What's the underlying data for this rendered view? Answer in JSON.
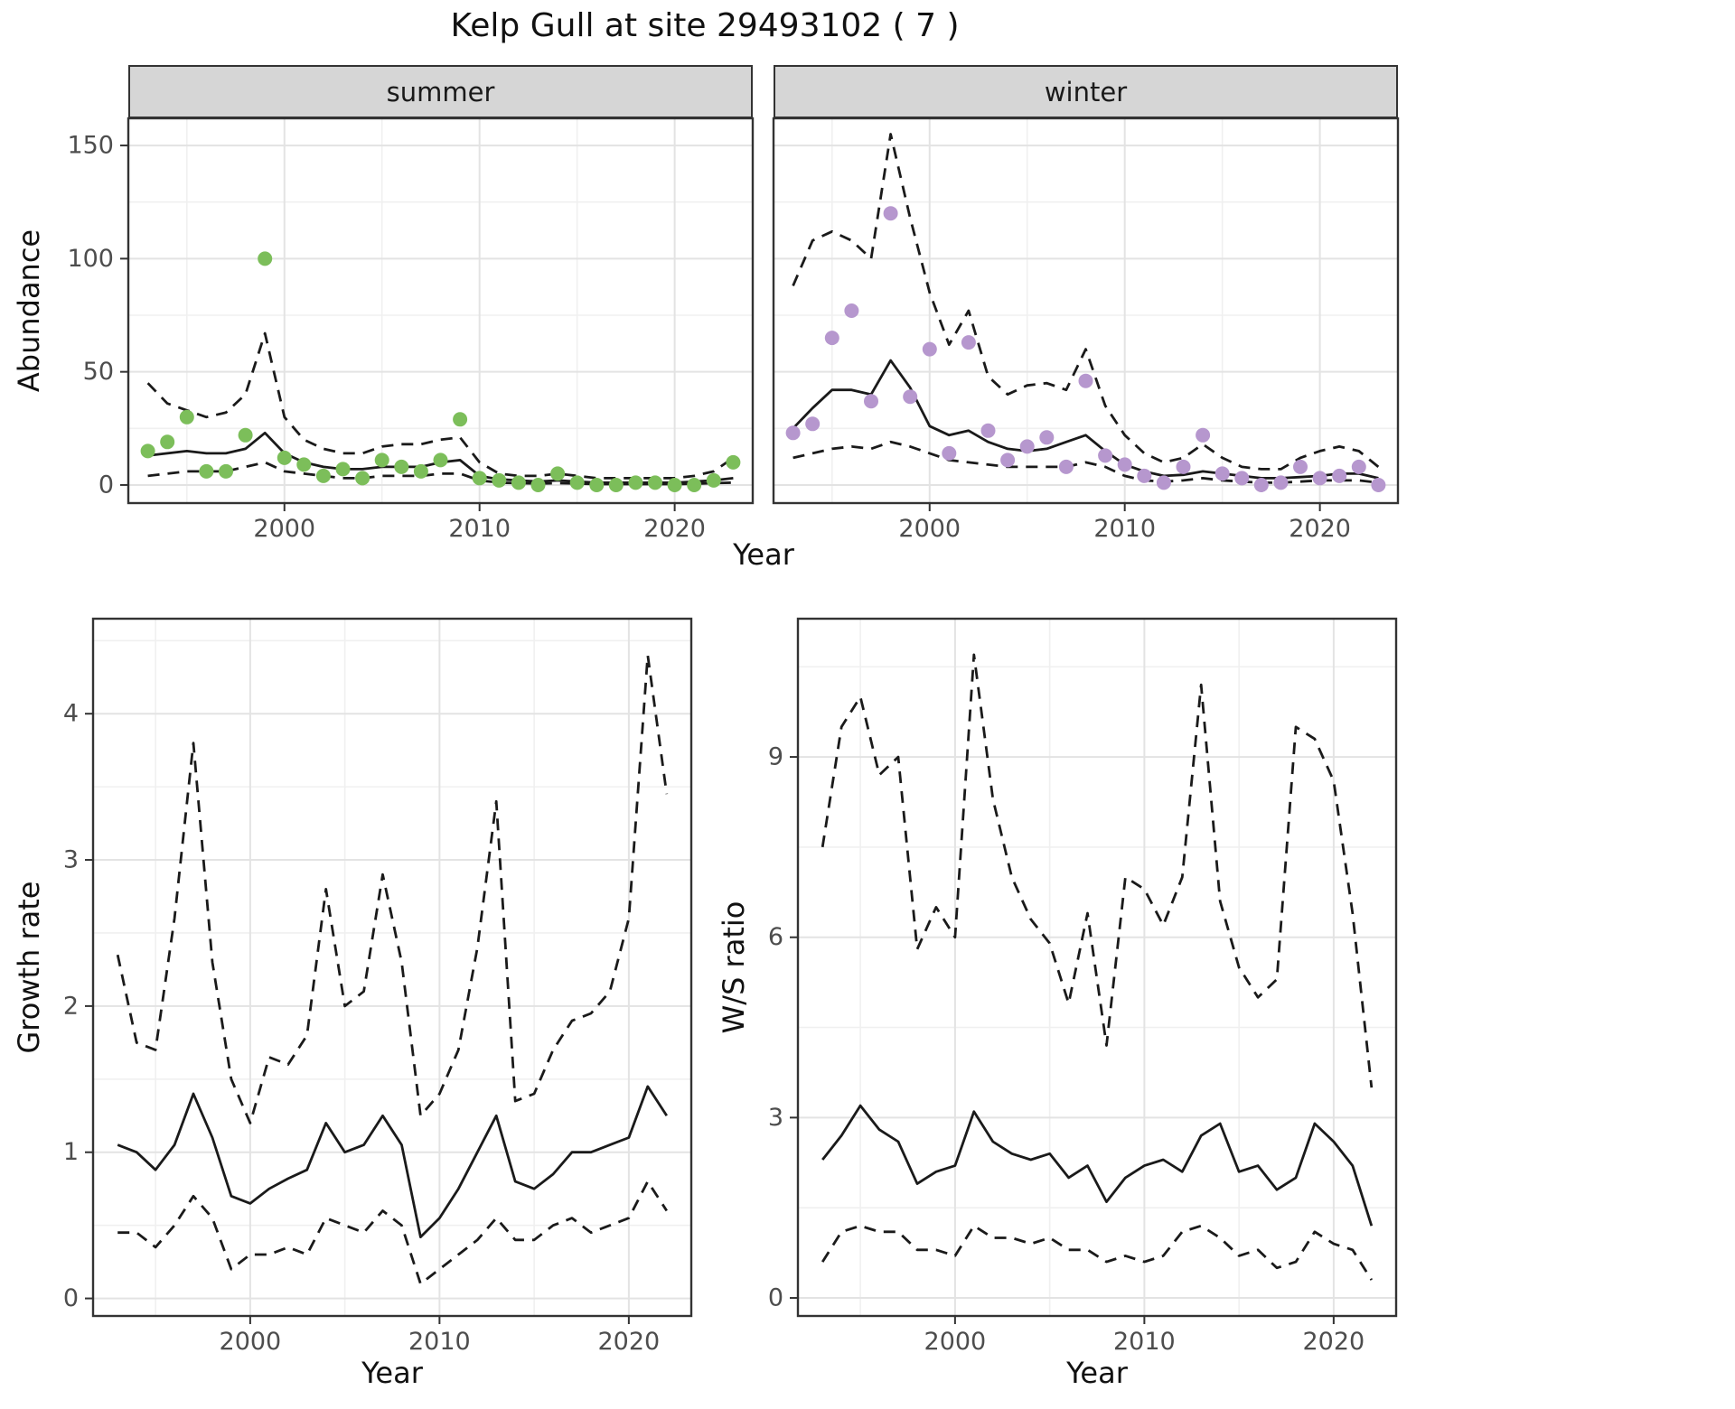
{
  "title": "Kelp Gull at site 29493102 ( 7 )",
  "axis_labels": {
    "abundance": "Abundance",
    "year": "Year",
    "growth_rate": "Growth rate",
    "ws_ratio": "W/S ratio"
  },
  "colors": {
    "summer_point": "#7CBE5A",
    "winter_point": "#B697CE",
    "line": "#1a1a1a",
    "panel_border": "#333333",
    "strip_bg": "#d6d6d6",
    "grid_major": "#e3e3e3",
    "grid_minor": "#f0f0f0"
  },
  "chart_data": [
    {
      "id": "abundance-summer",
      "type": "scatter",
      "facet_label": "summer",
      "ylabel": "Abundance",
      "xlabel": "Year",
      "x": [
        1993,
        1994,
        1995,
        1996,
        1997,
        1998,
        1999,
        2000,
        2001,
        2002,
        2003,
        2004,
        2005,
        2006,
        2007,
        2008,
        2009,
        2010,
        2011,
        2012,
        2013,
        2014,
        2015,
        2016,
        2017,
        2018,
        2019,
        2020,
        2021,
        2022,
        2023
      ],
      "observed": [
        15,
        19,
        30,
        6,
        6,
        22,
        100,
        12,
        9,
        4,
        7,
        3,
        11,
        8,
        6,
        11,
        29,
        3,
        2,
        1,
        0,
        5,
        1,
        0,
        0,
        1,
        1,
        0,
        0,
        2,
        10
      ],
      "fit": [
        13,
        14,
        15,
        14,
        14,
        16,
        23,
        14,
        10,
        8,
        7,
        7,
        8,
        8,
        8,
        10,
        11,
        4,
        2.5,
        2,
        1.5,
        2,
        1.5,
        1,
        1,
        1,
        1,
        1,
        1.5,
        2,
        3
      ],
      "upper": [
        45,
        36,
        33,
        30,
        32,
        40,
        67,
        30,
        20,
        16,
        14,
        14,
        17,
        18,
        18,
        20,
        21,
        10,
        5,
        4,
        4,
        5,
        4,
        3,
        3,
        3,
        3,
        3,
        4,
        6,
        12
      ],
      "lower": [
        4,
        5,
        6,
        6,
        6,
        8,
        10,
        6,
        5,
        4,
        3,
        3,
        4,
        4,
        4,
        5,
        5,
        2,
        1,
        0.8,
        0.6,
        0.8,
        0.6,
        0.4,
        0.4,
        0.4,
        0.4,
        0.4,
        0.5,
        0.8,
        1
      ],
      "point_color": "#7CBE5A",
      "xlim": [
        1992,
        2024
      ],
      "ylim": [
        -8,
        162
      ],
      "xticks": [
        2000,
        2010,
        2020
      ],
      "yticks": [
        0,
        50,
        100,
        150
      ],
      "x_minor": [
        1995,
        2005,
        2015
      ],
      "y_minor": [
        25,
        75,
        125
      ]
    },
    {
      "id": "abundance-winter",
      "type": "scatter",
      "facet_label": "winter",
      "ylabel": "Abundance",
      "xlabel": "Year",
      "x": [
        1993,
        1994,
        1995,
        1996,
        1997,
        1998,
        1999,
        2000,
        2001,
        2002,
        2003,
        2004,
        2005,
        2006,
        2007,
        2008,
        2009,
        2010,
        2011,
        2012,
        2013,
        2014,
        2015,
        2016,
        2017,
        2018,
        2019,
        2020,
        2021,
        2022,
        2023
      ],
      "observed": [
        23,
        27,
        65,
        77,
        37,
        120,
        39,
        60,
        14,
        63,
        24,
        11,
        17,
        21,
        8,
        46,
        13,
        9,
        4,
        1,
        8,
        22,
        5,
        3,
        0,
        1,
        8,
        3,
        4,
        8,
        0
      ],
      "fit": [
        25,
        34,
        42,
        42,
        40,
        55,
        43,
        26,
        22,
        24,
        19,
        16,
        15,
        16,
        19,
        22,
        15,
        9,
        6,
        4,
        4.5,
        6,
        5,
        4,
        3,
        3,
        3.5,
        4,
        5,
        5,
        3
      ],
      "upper": [
        88,
        108,
        112,
        108,
        100,
        155,
        118,
        85,
        62,
        77,
        48,
        40,
        44,
        45,
        42,
        60,
        35,
        22,
        14,
        10,
        12,
        18,
        12,
        8,
        7,
        7,
        12,
        15,
        17,
        15,
        8
      ],
      "lower": [
        12,
        14,
        16,
        17,
        16,
        19,
        17,
        14,
        11,
        10,
        9,
        8,
        8,
        8,
        8,
        10,
        8,
        4,
        2,
        1.5,
        2,
        3,
        2,
        1.5,
        1,
        1,
        1.5,
        2,
        2,
        2,
        1
      ],
      "point_color": "#B697CE",
      "xlim": [
        1992,
        2024
      ],
      "ylim": [
        -8,
        162
      ],
      "xticks": [
        2000,
        2010,
        2020
      ],
      "yticks": [
        0,
        50,
        100,
        150
      ],
      "x_minor": [
        1995,
        2005,
        2015
      ],
      "y_minor": [
        25,
        75,
        125
      ]
    },
    {
      "id": "growth-rate",
      "type": "line",
      "ylabel": "Growth rate",
      "xlabel": "Year",
      "x": [
        1993,
        1994,
        1995,
        1996,
        1997,
        1998,
        1999,
        2000,
        2001,
        2002,
        2003,
        2004,
        2005,
        2006,
        2007,
        2008,
        2009,
        2010,
        2011,
        2012,
        2013,
        2014,
        2015,
        2016,
        2017,
        2018,
        2019,
        2020,
        2021,
        2022
      ],
      "fit": [
        1.05,
        1.0,
        0.88,
        1.05,
        1.4,
        1.1,
        0.7,
        0.65,
        0.75,
        0.82,
        0.88,
        1.2,
        1.0,
        1.05,
        1.25,
        1.05,
        0.42,
        0.55,
        0.75,
        1.0,
        1.25,
        0.8,
        0.75,
        0.85,
        1.0,
        1.0,
        1.05,
        1.1,
        1.45,
        1.25
      ],
      "upper": [
        2.35,
        1.75,
        1.7,
        2.6,
        3.8,
        2.3,
        1.5,
        1.2,
        1.65,
        1.6,
        1.8,
        2.8,
        2.0,
        2.1,
        2.9,
        2.3,
        1.25,
        1.4,
        1.7,
        2.4,
        3.4,
        1.35,
        1.4,
        1.7,
        1.9,
        1.95,
        2.1,
        2.6,
        4.4,
        3.45
      ],
      "lower": [
        0.45,
        0.45,
        0.35,
        0.5,
        0.7,
        0.55,
        0.2,
        0.3,
        0.3,
        0.35,
        0.3,
        0.55,
        0.5,
        0.45,
        0.6,
        0.5,
        0.1,
        0.2,
        0.3,
        0.4,
        0.55,
        0.4,
        0.4,
        0.5,
        0.55,
        0.45,
        0.5,
        0.55,
        0.8,
        0.6
      ],
      "xlim": [
        1991.7,
        2023.3
      ],
      "ylim": [
        -0.12,
        4.65
      ],
      "xticks": [
        2000,
        2010,
        2020
      ],
      "yticks": [
        0,
        1,
        2,
        3,
        4
      ],
      "x_minor": [
        1995,
        2005,
        2015
      ],
      "y_minor": [
        0.5,
        1.5,
        2.5,
        3.5,
        4.5
      ]
    },
    {
      "id": "ws-ratio",
      "type": "line",
      "ylabel": "W/S ratio",
      "xlabel": "Year",
      "x": [
        1993,
        1994,
        1995,
        1996,
        1997,
        1998,
        1999,
        2000,
        2001,
        2002,
        2003,
        2004,
        2005,
        2006,
        2007,
        2008,
        2009,
        2010,
        2011,
        2012,
        2013,
        2014,
        2015,
        2016,
        2017,
        2018,
        2019,
        2020,
        2021,
        2022
      ],
      "fit": [
        2.3,
        2.7,
        3.2,
        2.8,
        2.6,
        1.9,
        2.1,
        2.2,
        3.1,
        2.6,
        2.4,
        2.3,
        2.4,
        2.0,
        2.2,
        1.6,
        2.0,
        2.2,
        2.3,
        2.1,
        2.7,
        2.9,
        2.1,
        2.2,
        1.8,
        2.0,
        2.9,
        2.6,
        2.2,
        1.2
      ],
      "upper": [
        7.5,
        9.5,
        10.0,
        8.7,
        9.0,
        5.8,
        6.5,
        6.0,
        10.7,
        8.3,
        7.0,
        6.3,
        5.9,
        4.9,
        6.4,
        4.2,
        7.0,
        6.8,
        6.2,
        7.0,
        10.2,
        6.6,
        5.5,
        5.0,
        5.3,
        9.5,
        9.3,
        8.6,
        6.4,
        3.5
      ],
      "lower": [
        0.6,
        1.1,
        1.2,
        1.1,
        1.1,
        0.8,
        0.8,
        0.7,
        1.2,
        1.0,
        1.0,
        0.9,
        1.0,
        0.8,
        0.8,
        0.6,
        0.7,
        0.6,
        0.7,
        1.1,
        1.2,
        1.0,
        0.7,
        0.8,
        0.5,
        0.6,
        1.1,
        0.9,
        0.8,
        0.3
      ],
      "xlim": [
        1991.7,
        2023.3
      ],
      "ylim": [
        -0.3,
        11.3
      ],
      "xticks": [
        2000,
        2010,
        2020
      ],
      "yticks": [
        0,
        3,
        6,
        9
      ],
      "x_minor": [
        1995,
        2005,
        2015
      ],
      "y_minor": [
        1.5,
        4.5,
        7.5,
        10.5
      ]
    }
  ]
}
